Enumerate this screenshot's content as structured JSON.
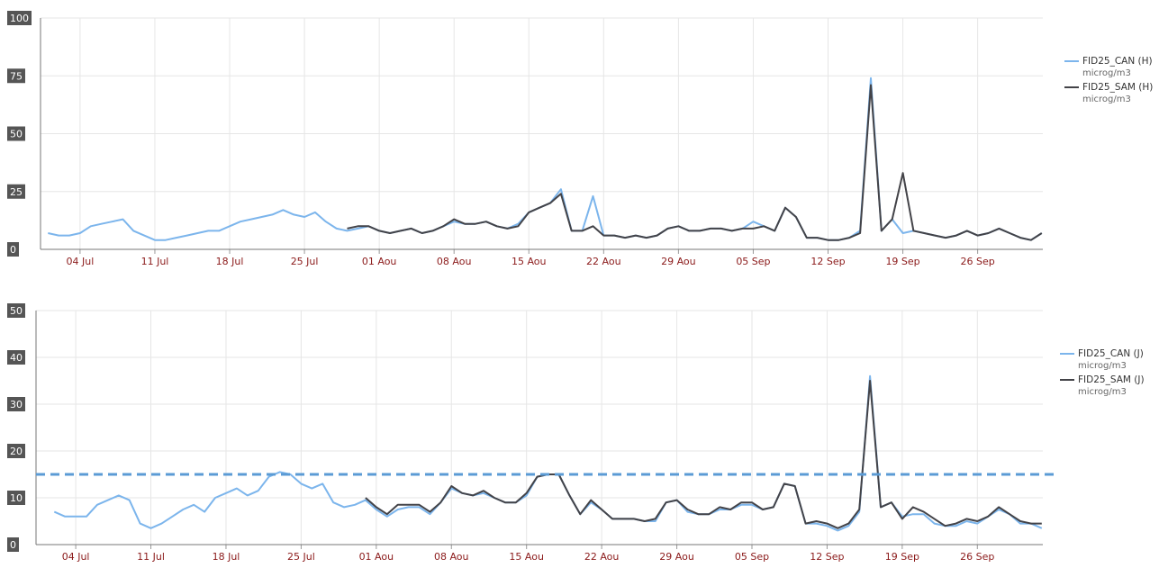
{
  "chart_data": [
    {
      "type": "line",
      "categories": [
        null,
        null,
        null,
        "04 Jul",
        null,
        null,
        null,
        null,
        null,
        null,
        "11 Jul",
        null,
        null,
        null,
        null,
        null,
        null,
        "18 Jul",
        null,
        null,
        null,
        null,
        null,
        null,
        "25 Jul",
        null,
        null,
        null,
        null,
        null,
        null,
        "01 Aou",
        null,
        null,
        null,
        null,
        null,
        null,
        "08 Aou",
        null,
        null,
        null,
        null,
        null,
        null,
        "15 Aou",
        null,
        null,
        null,
        null,
        null,
        null,
        "22 Aou",
        null,
        null,
        null,
        null,
        null,
        null,
        "29 Aou",
        null,
        null,
        null,
        null,
        null,
        null,
        "05 Sep",
        null,
        null,
        null,
        null,
        null,
        null,
        "12 Sep",
        null,
        null,
        null,
        null,
        null,
        null,
        "19 Sep",
        null,
        null,
        null,
        null,
        null,
        null,
        "26 Sep",
        null,
        null,
        null,
        null,
        null,
        null
      ],
      "ylim": [
        0,
        100
      ],
      "yticks": [
        0,
        25,
        50,
        75,
        100
      ],
      "grid": true,
      "series": [
        {
          "name": "FID25_CAN (H)",
          "unit": "microg/m3",
          "color": "#7cb5ec",
          "values": [
            7,
            6,
            6,
            7,
            10,
            11,
            12,
            13,
            8,
            6,
            4,
            4,
            5,
            6,
            7,
            8,
            8,
            10,
            12,
            13,
            14,
            15,
            17,
            15,
            14,
            16,
            12,
            9,
            8,
            9,
            10,
            8,
            7,
            8,
            9,
            7,
            8,
            10,
            12,
            11,
            11,
            12,
            10,
            9,
            11,
            16,
            18,
            20,
            26,
            8,
            8,
            23,
            6,
            6,
            5,
            6,
            5,
            6,
            9,
            10,
            8,
            8,
            9,
            9,
            8,
            9,
            12,
            10,
            8,
            18,
            14,
            5,
            5,
            4,
            4,
            5,
            8,
            74,
            8,
            13,
            7,
            8,
            7,
            6,
            5,
            6,
            8,
            6,
            7,
            9,
            7,
            5,
            4,
            7
          ]
        },
        {
          "name": "FID25_SAM (H)",
          "unit": "microg/m3",
          "color": "#434348",
          "values": [
            null,
            null,
            null,
            null,
            null,
            null,
            null,
            null,
            null,
            null,
            null,
            null,
            null,
            null,
            null,
            null,
            null,
            null,
            null,
            null,
            null,
            null,
            null,
            null,
            null,
            null,
            null,
            null,
            9,
            10,
            10,
            8,
            7,
            8,
            9,
            7,
            8,
            10,
            13,
            11,
            11,
            12,
            10,
            9,
            10,
            16,
            18,
            20,
            24,
            8,
            8,
            10,
            6,
            6,
            5,
            6,
            5,
            6,
            9,
            10,
            8,
            8,
            9,
            9,
            8,
            9,
            9,
            10,
            8,
            18,
            14,
            5,
            5,
            4,
            4,
            5,
            7,
            71,
            8,
            13,
            33,
            8,
            7,
            6,
            5,
            6,
            8,
            6,
            7,
            9,
            7,
            5,
            4,
            7
          ]
        }
      ]
    },
    {
      "type": "line",
      "categories": [
        null,
        null,
        null,
        "04 Jul",
        null,
        null,
        null,
        null,
        null,
        null,
        "11 Jul",
        null,
        null,
        null,
        null,
        null,
        null,
        "18 Jul",
        null,
        null,
        null,
        null,
        null,
        null,
        "25 Jul",
        null,
        null,
        null,
        null,
        null,
        null,
        "01 Aou",
        null,
        null,
        null,
        null,
        null,
        null,
        "08 Aou",
        null,
        null,
        null,
        null,
        null,
        null,
        "15 Aou",
        null,
        null,
        null,
        null,
        null,
        null,
        "22 Aou",
        null,
        null,
        null,
        null,
        null,
        null,
        "29 Aou",
        null,
        null,
        null,
        null,
        null,
        null,
        "05 Sep",
        null,
        null,
        null,
        null,
        null,
        null,
        "12 Sep",
        null,
        null,
        null,
        null,
        null,
        null,
        "19 Sep",
        null,
        null,
        null,
        null,
        null,
        null,
        "26 Sep",
        null,
        null,
        null,
        null,
        null,
        null
      ],
      "ylim": [
        0,
        50
      ],
      "yticks": [
        0,
        10,
        20,
        30,
        40,
        50
      ],
      "grid": true,
      "reference_line": {
        "value": 15,
        "color": "#5b9bd5"
      },
      "series": [
        {
          "name": "FID25_CAN (J)",
          "unit": "microg/m3",
          "color": "#7cb5ec",
          "values": [
            null,
            7,
            6,
            6,
            6,
            8.5,
            9.5,
            10.5,
            9.5,
            4.5,
            3.5,
            4.5,
            6,
            7.5,
            8.5,
            7,
            10,
            11,
            12,
            10.5,
            11.5,
            14.5,
            15.5,
            15,
            13,
            12,
            13,
            9,
            8,
            8.5,
            9.5,
            7.5,
            6,
            7.5,
            8,
            8,
            6.5,
            9,
            12,
            11,
            10.5,
            11,
            10,
            9,
            9,
            10.5,
            14.5,
            15,
            15,
            10.5,
            6.5,
            9,
            7.5,
            5.5,
            5.5,
            5.5,
            5,
            5,
            9,
            9.5,
            7,
            6.5,
            6.5,
            7.5,
            7.5,
            8.5,
            8.5,
            7.5,
            8,
            13,
            12.5,
            4.5,
            4.5,
            4,
            3,
            4,
            7,
            36,
            8,
            9,
            6,
            6.5,
            6.5,
            4.5,
            4,
            4,
            5,
            4.5,
            6,
            7.5,
            6.5,
            4.5,
            4.5,
            3.5
          ]
        },
        {
          "name": "FID25_SAM (J)",
          "unit": "microg/m3",
          "color": "#434348",
          "values": [
            null,
            null,
            null,
            null,
            null,
            null,
            null,
            null,
            null,
            null,
            null,
            null,
            null,
            null,
            null,
            null,
            null,
            null,
            null,
            null,
            null,
            null,
            null,
            null,
            null,
            null,
            null,
            null,
            null,
            null,
            10,
            8,
            6.5,
            8.5,
            8.5,
            8.5,
            7,
            9,
            12.5,
            11,
            10.5,
            11.5,
            10,
            9,
            9,
            11,
            14.5,
            15,
            15,
            10.5,
            6.5,
            9.5,
            7.5,
            5.5,
            5.5,
            5.5,
            5,
            5.5,
            9,
            9.5,
            7.5,
            6.5,
            6.5,
            8,
            7.5,
            9,
            9,
            7.5,
            8,
            13,
            12.5,
            4.5,
            5,
            4.5,
            3.5,
            4.5,
            7.5,
            35,
            8,
            9,
            5.5,
            8,
            7,
            5.5,
            4,
            4.5,
            5.5,
            5,
            6,
            8,
            6.5,
            5,
            4.5,
            4.5
          ]
        }
      ]
    }
  ]
}
